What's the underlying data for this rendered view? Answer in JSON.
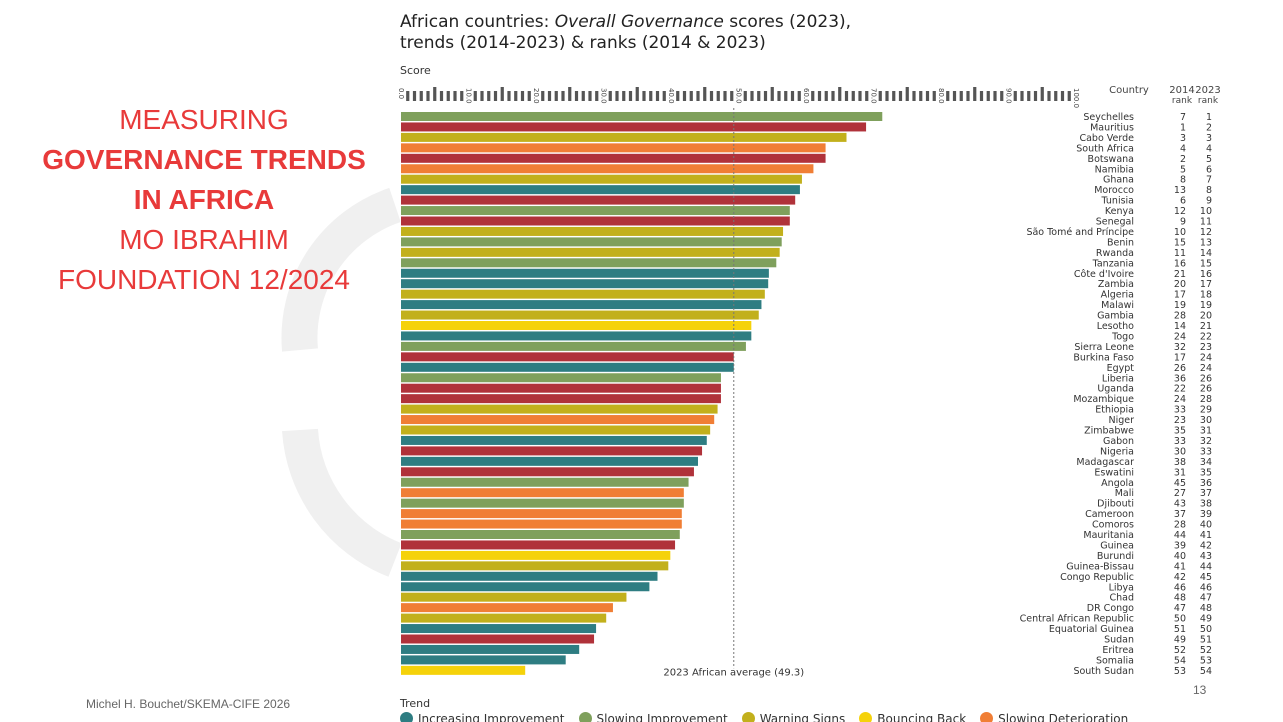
{
  "slide": {
    "title_line1": "MEASURING",
    "title_line2": "GOVERNANCE TRENDS",
    "title_line3": "IN AFRICA",
    "title_line4": "MO IBRAHIM",
    "title_line5": "FOUNDATION 12/2024",
    "author": "Michel H. Bouchet/SKEMA-CIFE 2026",
    "page_number": "13"
  },
  "figure": {
    "title_part1": "African countries: ",
    "title_italic": "Overall Governance",
    "title_part2": " scores (2023),",
    "title_line2": "trends (2014-2023) & ranks (2014 & 2023)",
    "score_label": "Score",
    "trend_label": "Trend",
    "col_country": "Country",
    "col_2014": "2014",
    "col_2023": "2023",
    "col_rank": "rank",
    "average_label": "2023 African average (49.3)"
  },
  "legend": [
    {
      "name": "Increasing Improvement",
      "color": "#2e7d82"
    },
    {
      "name": "Slowing Improvement",
      "color": "#7fa05c"
    },
    {
      "name": "Warning Signs",
      "color": "#c2b01c"
    },
    {
      "name": "Bouncing Back",
      "color": "#f5d20a"
    },
    {
      "name": "Slowing Deterioration",
      "color": "#f07e35"
    }
  ],
  "colors": {
    "increasing_improvement": "#2e7d82",
    "slowing_improvement": "#7fa05c",
    "warning_signs": "#c2b01c",
    "bouncing_back": "#f5d20a",
    "slowing_deterioration": "#f07e35",
    "increasing_deterioration": "#b0323a",
    "title_red": "#e83a3a"
  },
  "chart_data": {
    "type": "bar",
    "orientation": "horizontal",
    "xlim": [
      0,
      100
    ],
    "ticks": [
      0,
      10,
      20,
      30,
      40,
      50,
      60,
      70,
      80,
      90,
      100
    ],
    "tick_labels": [
      "0.0",
      "10.0",
      "20.0",
      "30.0",
      "40.0",
      "50.0",
      "60.0",
      "70.0",
      "80.0",
      "90.0",
      "100.0"
    ],
    "average": 49.3,
    "countries": [
      {
        "name": "Seychelles",
        "r2014": "7",
        "r2023": "1",
        "score": 71.3,
        "trend": "slowing_improvement"
      },
      {
        "name": "Mauritius",
        "r2014": "1",
        "r2023": "2",
        "score": 68.9,
        "trend": "increasing_deterioration"
      },
      {
        "name": "Cabo Verde",
        "r2014": "3",
        "r2023": "3",
        "score": 66.0,
        "trend": "warning_signs"
      },
      {
        "name": "South Africa",
        "r2014": "4",
        "r2023": "4",
        "score": 62.9,
        "trend": "slowing_deterioration"
      },
      {
        "name": "Botswana",
        "r2014": "2",
        "r2023": "5",
        "score": 62.9,
        "trend": "increasing_deterioration"
      },
      {
        "name": "Namibia",
        "r2014": "5",
        "r2023": "6",
        "score": 61.1,
        "trend": "slowing_deterioration"
      },
      {
        "name": "Ghana",
        "r2014": "8",
        "r2023": "7",
        "score": 59.4,
        "trend": "warning_signs"
      },
      {
        "name": "Morocco",
        "r2014": "13",
        "r2023": "8",
        "score": 59.1,
        "trend": "increasing_improvement"
      },
      {
        "name": "Tunisia",
        "r2014": "6",
        "r2023": "9",
        "score": 58.4,
        "trend": "increasing_deterioration"
      },
      {
        "name": "Kenya",
        "r2014": "12",
        "r2023": "10",
        "score": 57.6,
        "trend": "slowing_improvement"
      },
      {
        "name": "Senegal",
        "r2014": "9",
        "r2023": "11",
        "score": 57.6,
        "trend": "increasing_deterioration"
      },
      {
        "name": "São Tomé and Príncipe",
        "r2014": "10",
        "r2023": "12",
        "score": 56.6,
        "trend": "warning_signs"
      },
      {
        "name": "Benin",
        "r2014": "15",
        "r2023": "13",
        "score": 56.4,
        "trend": "slowing_improvement"
      },
      {
        "name": "Rwanda",
        "r2014": "11",
        "r2023": "14",
        "score": 56.1,
        "trend": "warning_signs"
      },
      {
        "name": "Tanzania",
        "r2014": "16",
        "r2023": "15",
        "score": 55.6,
        "trend": "slowing_improvement"
      },
      {
        "name": "Côte d'Ivoire",
        "r2014": "21",
        "r2023": "16",
        "score": 54.5,
        "trend": "increasing_improvement"
      },
      {
        "name": "Zambia",
        "r2014": "20",
        "r2023": "17",
        "score": 54.4,
        "trend": "increasing_improvement"
      },
      {
        "name": "Algeria",
        "r2014": "17",
        "r2023": "18",
        "score": 53.9,
        "trend": "warning_signs"
      },
      {
        "name": "Malawi",
        "r2014": "19",
        "r2023": "19",
        "score": 53.4,
        "trend": "increasing_improvement"
      },
      {
        "name": "Gambia",
        "r2014": "28",
        "r2023": "20",
        "score": 53.0,
        "trend": "warning_signs"
      },
      {
        "name": "Lesotho",
        "r2014": "14",
        "r2023": "21",
        "score": 51.9,
        "trend": "bouncing_back"
      },
      {
        "name": "Togo",
        "r2014": "24",
        "r2023": "22",
        "score": 51.9,
        "trend": "increasing_improvement"
      },
      {
        "name": "Sierra Leone",
        "r2014": "32",
        "r2023": "23",
        "score": 51.1,
        "trend": "slowing_improvement"
      },
      {
        "name": "Burkina Faso",
        "r2014": "17",
        "r2023": "24",
        "score": 49.3,
        "trend": "increasing_deterioration"
      },
      {
        "name": "Egypt",
        "r2014": "26",
        "r2023": "24",
        "score": 49.3,
        "trend": "increasing_improvement"
      },
      {
        "name": "Liberia",
        "r2014": "36",
        "r2023": "26",
        "score": 47.4,
        "trend": "slowing_improvement"
      },
      {
        "name": "Uganda",
        "r2014": "22",
        "r2023": "26",
        "score": 47.4,
        "trend": "increasing_deterioration"
      },
      {
        "name": "Mozambique",
        "r2014": "24",
        "r2023": "28",
        "score": 47.4,
        "trend": "increasing_deterioration"
      },
      {
        "name": "Ethiopia",
        "r2014": "33",
        "r2023": "29",
        "score": 46.9,
        "trend": "warning_signs"
      },
      {
        "name": "Niger",
        "r2014": "23",
        "r2023": "30",
        "score": 46.4,
        "trend": "slowing_deterioration"
      },
      {
        "name": "Zimbabwe",
        "r2014": "35",
        "r2023": "31",
        "score": 45.8,
        "trend": "warning_signs"
      },
      {
        "name": "Gabon",
        "r2014": "33",
        "r2023": "32",
        "score": 45.3,
        "trend": "increasing_improvement"
      },
      {
        "name": "Nigeria",
        "r2014": "30",
        "r2023": "33",
        "score": 44.6,
        "trend": "increasing_deterioration"
      },
      {
        "name": "Madagascar",
        "r2014": "38",
        "r2023": "34",
        "score": 44.0,
        "trend": "increasing_improvement"
      },
      {
        "name": "Eswatini",
        "r2014": "31",
        "r2023": "35",
        "score": 43.4,
        "trend": "increasing_deterioration"
      },
      {
        "name": "Angola",
        "r2014": "45",
        "r2023": "36",
        "score": 42.6,
        "trend": "slowing_improvement"
      },
      {
        "name": "Mali",
        "r2014": "27",
        "r2023": "37",
        "score": 41.9,
        "trend": "slowing_deterioration"
      },
      {
        "name": "Djibouti",
        "r2014": "43",
        "r2023": "38",
        "score": 41.9,
        "trend": "slowing_improvement"
      },
      {
        "name": "Cameroon",
        "r2014": "37",
        "r2023": "39",
        "score": 41.6,
        "trend": "slowing_deterioration"
      },
      {
        "name": "Comoros",
        "r2014": "28",
        "r2023": "40",
        "score": 41.6,
        "trend": "slowing_deterioration"
      },
      {
        "name": "Mauritania",
        "r2014": "44",
        "r2023": "41",
        "score": 41.3,
        "trend": "slowing_improvement"
      },
      {
        "name": "Guinea",
        "r2014": "39",
        "r2023": "42",
        "score": 40.6,
        "trend": "increasing_deterioration"
      },
      {
        "name": "Burundi",
        "r2014": "40",
        "r2023": "43",
        "score": 39.9,
        "trend": "bouncing_back"
      },
      {
        "name": "Guinea-Bissau",
        "r2014": "41",
        "r2023": "44",
        "score": 39.6,
        "trend": "warning_signs"
      },
      {
        "name": "Congo Republic",
        "r2014": "42",
        "r2023": "45",
        "score": 38.0,
        "trend": "increasing_improvement"
      },
      {
        "name": "Libya",
        "r2014": "46",
        "r2023": "46",
        "score": 36.8,
        "trend": "increasing_improvement"
      },
      {
        "name": "Chad",
        "r2014": "48",
        "r2023": "47",
        "score": 33.4,
        "trend": "warning_signs"
      },
      {
        "name": "DR Congo",
        "r2014": "47",
        "r2023": "48",
        "score": 31.4,
        "trend": "slowing_deterioration"
      },
      {
        "name": "Central African Republic",
        "r2014": "50",
        "r2023": "49",
        "score": 30.4,
        "trend": "warning_signs"
      },
      {
        "name": "Equatorial Guinea",
        "r2014": "51",
        "r2023": "50",
        "score": 28.9,
        "trend": "increasing_improvement"
      },
      {
        "name": "Sudan",
        "r2014": "49",
        "r2023": "51",
        "score": 28.6,
        "trend": "increasing_deterioration"
      },
      {
        "name": "Eritrea",
        "r2014": "52",
        "r2023": "52",
        "score": 26.4,
        "trend": "increasing_improvement"
      },
      {
        "name": "Somalia",
        "r2014": "54",
        "r2023": "53",
        "score": 24.4,
        "trend": "increasing_improvement"
      },
      {
        "name": "South Sudan",
        "r2014": "53",
        "r2023": "54",
        "score": 18.4,
        "trend": "bouncing_back"
      }
    ]
  }
}
